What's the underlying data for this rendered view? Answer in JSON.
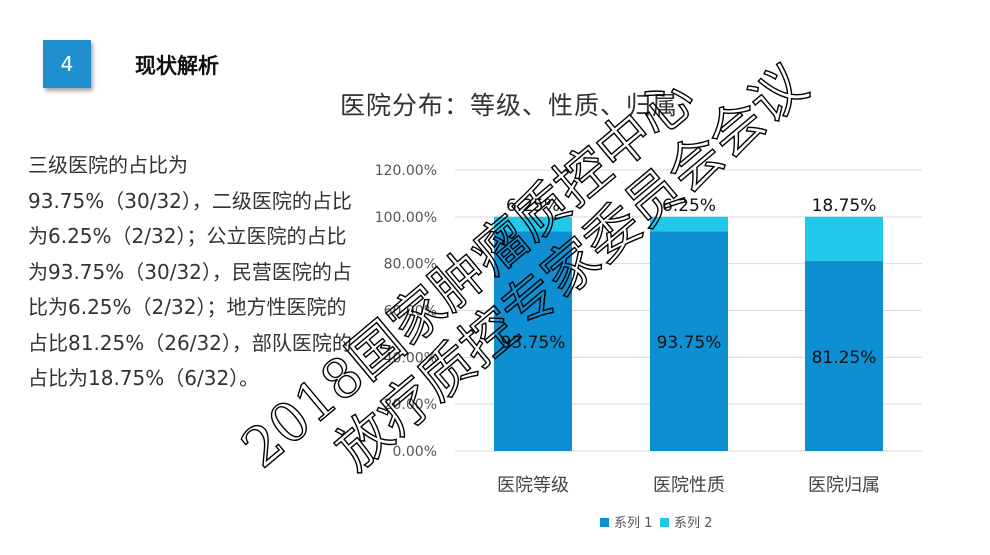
{
  "slide": {
    "number": "4",
    "heading": "现状解析",
    "description": "三级医院的占比为93.75%（30/32），二级医院的占比为6.25%（2/32）；公立医院的占比为93.75%（30/32），民营医院的占比为6.25%（2/32）；地方性医院的占比81.25%（26/32），部队医院的占比为18.75%（6/32）。",
    "watermark_line1": "2018国家肿瘤质控中心",
    "watermark_line2": "放疗质控专家委员会会议"
  },
  "colors": {
    "badge": "#1f8fd0",
    "series1": "#0e8fd2",
    "series2": "#21c8ea",
    "grid": "#d9d9d9"
  },
  "chart_data": {
    "type": "bar",
    "stacked": true,
    "title": "医院分布：等级、性质、归属",
    "categories": [
      "医院等级",
      "医院性质",
      "医院归属"
    ],
    "series": [
      {
        "name": "系列 1",
        "values": [
          93.75,
          93.75,
          81.25
        ],
        "labels": [
          "93.75%",
          "93.75%",
          "81.25%"
        ]
      },
      {
        "name": "系列 2",
        "values": [
          6.25,
          6.25,
          18.75
        ],
        "labels": [
          "6.25%",
          "6.25%",
          "18.75%"
        ]
      }
    ],
    "ylim": [
      0,
      120
    ],
    "yticks": [
      "0.00%",
      "20.00%",
      "40.00%",
      "60.00%",
      "80.00%",
      "100.00%",
      "120.00%"
    ],
    "grid": true,
    "legend": "bottom"
  }
}
